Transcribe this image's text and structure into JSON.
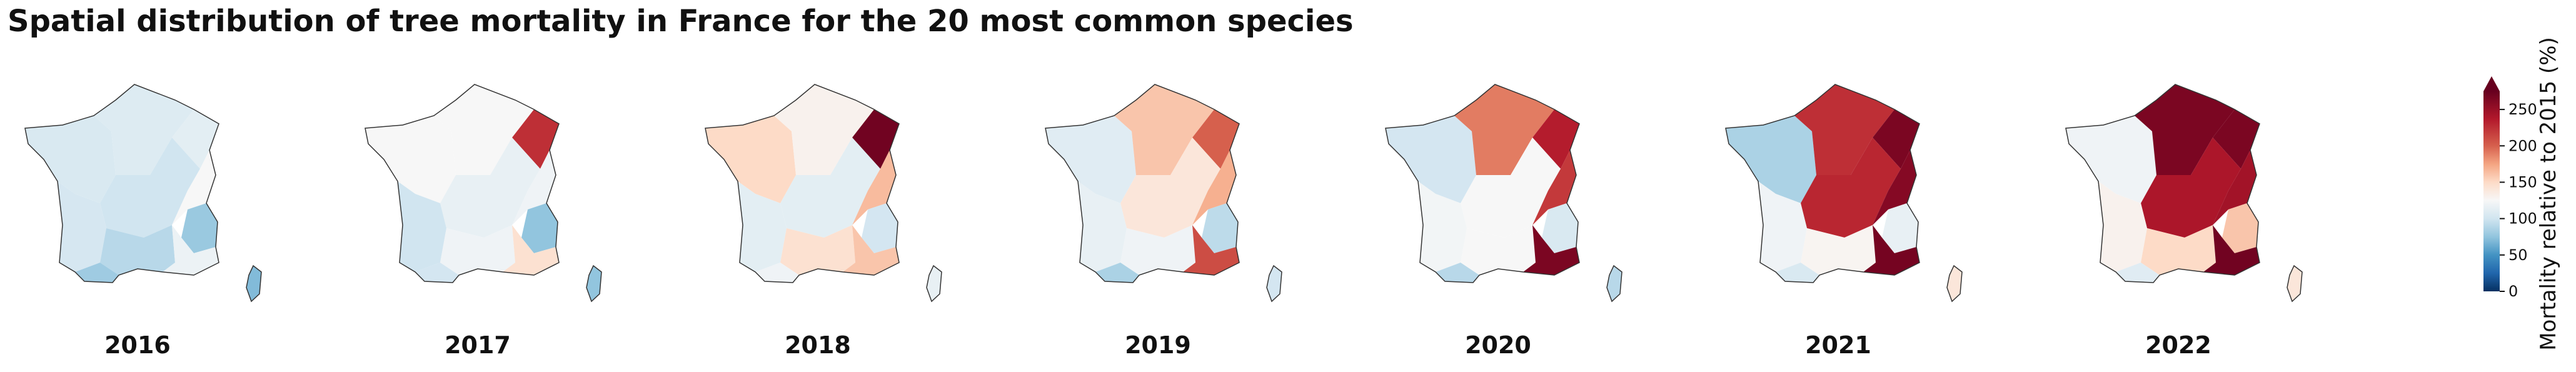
{
  "title": "Spatial distribution of tree mortality in France for the 20 most common species",
  "colors": {
    "scale": [
      "#053061",
      "#2166ac",
      "#4393c3",
      "#92c5de",
      "#d1e5f0",
      "#f7f7f7",
      "#fddbc7",
      "#f4a582",
      "#d6604d",
      "#b2182b",
      "#67001f"
    ],
    "outline": "#333333"
  },
  "panels": [
    {
      "year": "2016",
      "regions": {
        "nw": 105,
        "n": 108,
        "ne": 112,
        "c": 100,
        "e": 125,
        "sw": 103,
        "s": 90,
        "alps": 78,
        "se": 118,
        "pyr": 80,
        "corsica": 70
      }
    },
    {
      "year": "2017",
      "regions": {
        "nw": 125,
        "n": 125,
        "ne": 225,
        "c": 115,
        "e": 120,
        "sw": 100,
        "s": 120,
        "alps": 75,
        "se": 145,
        "pyr": 102,
        "corsica": 75
      }
    },
    {
      "year": "2018",
      "regions": {
        "nw": 150,
        "n": 130,
        "ne": 270,
        "c": 112,
        "e": 165,
        "sw": 112,
        "s": 145,
        "alps": 102,
        "se": 160,
        "pyr": 120,
        "corsica": 115
      }
    },
    {
      "year": "2019",
      "regions": {
        "nw": 110,
        "n": 160,
        "ne": 200,
        "c": 140,
        "e": 170,
        "sw": 115,
        "s": 120,
        "alps": 92,
        "se": 210,
        "pyr": 85,
        "corsica": 102
      }
    },
    {
      "year": "2020",
      "regions": {
        "nw": 102,
        "n": 190,
        "ne": 235,
        "c": 125,
        "e": 220,
        "sw": 122,
        "s": 125,
        "alps": 105,
        "se": 265,
        "pyr": 90,
        "corsica": 90
      }
    },
    {
      "year": "2021",
      "regions": {
        "nw": 85,
        "n": 225,
        "ne": 265,
        "c": 230,
        "e": 260,
        "sw": 120,
        "s": 128,
        "alps": 115,
        "se": 268,
        "pyr": 105,
        "corsica": 140
      }
    },
    {
      "year": "2022",
      "regions": {
        "nw": 120,
        "n": 265,
        "ne": 265,
        "c": 240,
        "e": 245,
        "sw": 130,
        "s": 150,
        "alps": 160,
        "se": 270,
        "pyr": 110,
        "corsica": 140
      }
    }
  ],
  "colorbar": {
    "label": "Mortality relative to 2015 (%)",
    "min": 0,
    "max": 275,
    "center": 100,
    "ticks": [
      "0",
      "50",
      "100",
      "150",
      "200",
      "250"
    ]
  }
}
